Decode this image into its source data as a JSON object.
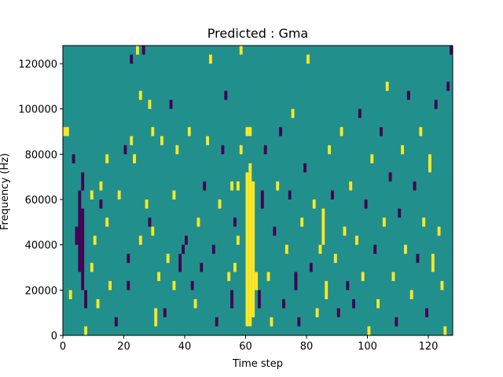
{
  "chart_data": {
    "type": "heatmap",
    "title": "Predicted : Gma",
    "xlabel": "Time step",
    "ylabel": "Frequency (Hz)",
    "xlim": [
      0,
      128
    ],
    "ylim": [
      0,
      128000
    ],
    "x_ticks": [
      0,
      20,
      40,
      60,
      80,
      100,
      120
    ],
    "y_ticks": [
      0,
      20000,
      40000,
      60000,
      80000,
      100000,
      120000
    ],
    "x_tick_labels": [
      "0",
      "20",
      "40",
      "60",
      "80",
      "100",
      "120"
    ],
    "y_tick_labels": [
      "0",
      "20000",
      "40000",
      "60000",
      "80000",
      "100000",
      "120000"
    ],
    "n_time_steps": 128,
    "n_freq_bins": 32,
    "bin_height_hz": 4000,
    "values_legend": {
      "-1": "#440154",
      "0": "#21908c",
      "1": "#fde725"
    },
    "background_value": 0,
    "cells": [
      {
        "t": 60,
        "f0": 4000,
        "f1": 72000,
        "v": 1
      },
      {
        "t": 61,
        "f0": 4000,
        "f1": 76000,
        "v": 1
      },
      {
        "t": 62,
        "f0": 8000,
        "f1": 68000,
        "v": 1
      },
      {
        "t": 63,
        "f0": 20000,
        "f1": 28000,
        "v": 1
      },
      {
        "t": 60,
        "f0": 88000,
        "f1": 92000,
        "v": 1
      },
      {
        "t": 61,
        "f0": 88000,
        "f1": 92000,
        "v": 1
      },
      {
        "t": 56,
        "f0": 28000,
        "f1": 32000,
        "v": 1
      },
      {
        "t": 57,
        "f0": 40000,
        "f1": 44000,
        "v": 1
      },
      {
        "t": 55,
        "f0": 64000,
        "f1": 68000,
        "v": 1
      },
      {
        "t": 58,
        "f0": 80000,
        "f1": 84000,
        "v": 1
      },
      {
        "t": 5,
        "f0": 28000,
        "f1": 64000,
        "v": -1
      },
      {
        "t": 6,
        "f0": 20000,
        "f1": 56000,
        "v": -1
      },
      {
        "t": 4,
        "f0": 40000,
        "f1": 48000,
        "v": -1
      },
      {
        "t": 6,
        "f0": 64000,
        "f1": 72000,
        "v": -1
      },
      {
        "t": 7,
        "f0": 12000,
        "f1": 20000,
        "v": -1
      },
      {
        "t": 3,
        "f0": 76000,
        "f1": 80000,
        "v": -1
      },
      {
        "t": 0,
        "f0": 88000,
        "f1": 92000,
        "v": 1
      },
      {
        "t": 1,
        "f0": 88000,
        "f1": 92000,
        "v": 1
      },
      {
        "t": 2,
        "f0": 16000,
        "f1": 20000,
        "v": 1
      },
      {
        "t": 7,
        "f0": 0,
        "f1": 4000,
        "v": 1
      },
      {
        "t": 9,
        "f0": 28000,
        "f1": 32000,
        "v": 1
      },
      {
        "t": 10,
        "f0": 40000,
        "f1": 44000,
        "v": 1
      },
      {
        "t": 9,
        "f0": 60000,
        "f1": 64000,
        "v": 1
      },
      {
        "t": 11,
        "f0": 12000,
        "f1": 16000,
        "v": 1
      },
      {
        "t": 12,
        "f0": 56000,
        "f1": 60000,
        "v": -1
      },
      {
        "t": 12,
        "f0": 64000,
        "f1": 68000,
        "v": 1
      },
      {
        "t": 14,
        "f0": 48000,
        "f1": 52000,
        "v": 1
      },
      {
        "t": 15,
        "f0": 20000,
        "f1": 24000,
        "v": 1
      },
      {
        "t": 14,
        "f0": 76000,
        "f1": 80000,
        "v": 1
      },
      {
        "t": 17,
        "f0": 4000,
        "f1": 8000,
        "v": -1
      },
      {
        "t": 18,
        "f0": 60000,
        "f1": 64000,
        "v": 1
      },
      {
        "t": 20,
        "f0": 80000,
        "f1": 84000,
        "v": -1
      },
      {
        "t": 21,
        "f0": 20000,
        "f1": 24000,
        "v": -1
      },
      {
        "t": 21,
        "f0": 32000,
        "f1": 36000,
        "v": -1
      },
      {
        "t": 22,
        "f0": 84000,
        "f1": 88000,
        "v": 1
      },
      {
        "t": 22,
        "f0": 120000,
        "f1": 124000,
        "v": -1
      },
      {
        "t": 24,
        "f0": 124000,
        "f1": 128000,
        "v": 1
      },
      {
        "t": 25,
        "f0": 104000,
        "f1": 108000,
        "v": 1
      },
      {
        "t": 23,
        "f0": 76000,
        "f1": 80000,
        "v": 1
      },
      {
        "t": 25,
        "f0": 40000,
        "f1": 44000,
        "v": 1
      },
      {
        "t": 26,
        "f0": 124000,
        "f1": 128000,
        "v": -1
      },
      {
        "t": 27,
        "f0": 56000,
        "f1": 60000,
        "v": 1
      },
      {
        "t": 28,
        "f0": 48000,
        "f1": 52000,
        "v": -1
      },
      {
        "t": 28,
        "f0": 100000,
        "f1": 104000,
        "v": 1
      },
      {
        "t": 29,
        "f0": 88000,
        "f1": 92000,
        "v": 1
      },
      {
        "t": 29,
        "f0": 44000,
        "f1": 48000,
        "v": 1
      },
      {
        "t": 30,
        "f0": 4000,
        "f1": 12000,
        "v": 1
      },
      {
        "t": 31,
        "f0": 24000,
        "f1": 28000,
        "v": 1
      },
      {
        "t": 32,
        "f0": 84000,
        "f1": 88000,
        "v": 1
      },
      {
        "t": 33,
        "f0": 8000,
        "f1": 12000,
        "v": -1
      },
      {
        "t": 34,
        "f0": 32000,
        "f1": 36000,
        "v": 1
      },
      {
        "t": 35,
        "f0": 100000,
        "f1": 104000,
        "v": -1
      },
      {
        "t": 36,
        "f0": 20000,
        "f1": 24000,
        "v": 1
      },
      {
        "t": 36,
        "f0": 60000,
        "f1": 64000,
        "v": 1
      },
      {
        "t": 37,
        "f0": 80000,
        "f1": 84000,
        "v": 1
      },
      {
        "t": 38,
        "f0": 28000,
        "f1": 36000,
        "v": -1
      },
      {
        "t": 39,
        "f0": 36000,
        "f1": 40000,
        "v": -1
      },
      {
        "t": 40,
        "f0": 40000,
        "f1": 44000,
        "v": -1
      },
      {
        "t": 41,
        "f0": 88000,
        "f1": 92000,
        "v": 1
      },
      {
        "t": 42,
        "f0": 20000,
        "f1": 24000,
        "v": -1
      },
      {
        "t": 43,
        "f0": 12000,
        "f1": 16000,
        "v": 1
      },
      {
        "t": 44,
        "f0": 48000,
        "f1": 52000,
        "v": 1
      },
      {
        "t": 45,
        "f0": 28000,
        "f1": 32000,
        "v": -1
      },
      {
        "t": 46,
        "f0": 64000,
        "f1": 68000,
        "v": -1
      },
      {
        "t": 47,
        "f0": 84000,
        "f1": 88000,
        "v": 1
      },
      {
        "t": 48,
        "f0": 120000,
        "f1": 124000,
        "v": 1
      },
      {
        "t": 49,
        "f0": 36000,
        "f1": 40000,
        "v": -1
      },
      {
        "t": 50,
        "f0": 4000,
        "f1": 8000,
        "v": -1
      },
      {
        "t": 51,
        "f0": 56000,
        "f1": 60000,
        "v": 1
      },
      {
        "t": 52,
        "f0": 80000,
        "f1": 84000,
        "v": -1
      },
      {
        "t": 53,
        "f0": 104000,
        "f1": 108000,
        "v": -1
      },
      {
        "t": 54,
        "f0": 24000,
        "f1": 28000,
        "v": 1
      },
      {
        "t": 55,
        "f0": 12000,
        "f1": 20000,
        "v": -1
      },
      {
        "t": 56,
        "f0": 48000,
        "f1": 52000,
        "v": -1
      },
      {
        "t": 57,
        "f0": 64000,
        "f1": 68000,
        "v": 1
      },
      {
        "t": 58,
        "f0": 124000,
        "f1": 128000,
        "v": 1
      },
      {
        "t": 64,
        "f0": 12000,
        "f1": 20000,
        "v": -1
      },
      {
        "t": 65,
        "f0": 56000,
        "f1": 64000,
        "v": -1
      },
      {
        "t": 66,
        "f0": 80000,
        "f1": 84000,
        "v": -1
      },
      {
        "t": 67,
        "f0": 24000,
        "f1": 28000,
        "v": 1
      },
      {
        "t": 68,
        "f0": 4000,
        "f1": 8000,
        "v": 1
      },
      {
        "t": 69,
        "f0": 44000,
        "f1": 48000,
        "v": -1
      },
      {
        "t": 70,
        "f0": 64000,
        "f1": 68000,
        "v": 1
      },
      {
        "t": 71,
        "f0": 88000,
        "f1": 92000,
        "v": -1
      },
      {
        "t": 72,
        "f0": 12000,
        "f1": 16000,
        "v": -1
      },
      {
        "t": 73,
        "f0": 36000,
        "f1": 40000,
        "v": 1
      },
      {
        "t": 74,
        "f0": 60000,
        "f1": 64000,
        "v": -1
      },
      {
        "t": 75,
        "f0": 96000,
        "f1": 100000,
        "v": 1
      },
      {
        "t": 76,
        "f0": 20000,
        "f1": 28000,
        "v": -1
      },
      {
        "t": 77,
        "f0": 4000,
        "f1": 8000,
        "v": -1
      },
      {
        "t": 78,
        "f0": 48000,
        "f1": 52000,
        "v": 1
      },
      {
        "t": 79,
        "f0": 72000,
        "f1": 76000,
        "v": -1
      },
      {
        "t": 80,
        "f0": 120000,
        "f1": 124000,
        "v": 1
      },
      {
        "t": 81,
        "f0": 28000,
        "f1": 32000,
        "v": -1
      },
      {
        "t": 82,
        "f0": 56000,
        "f1": 60000,
        "v": 1
      },
      {
        "t": 83,
        "f0": 8000,
        "f1": 12000,
        "v": 1
      },
      {
        "t": 84,
        "f0": 36000,
        "f1": 40000,
        "v": 1
      },
      {
        "t": 85,
        "f0": 40000,
        "f1": 56000,
        "v": 1
      },
      {
        "t": 86,
        "f0": 16000,
        "f1": 24000,
        "v": 1
      },
      {
        "t": 87,
        "f0": 80000,
        "f1": 84000,
        "v": 1
      },
      {
        "t": 88,
        "f0": 60000,
        "f1": 64000,
        "v": -1
      },
      {
        "t": 89,
        "f0": 32000,
        "f1": 36000,
        "v": 1
      },
      {
        "t": 90,
        "f0": 8000,
        "f1": 12000,
        "v": -1
      },
      {
        "t": 91,
        "f0": 88000,
        "f1": 92000,
        "v": 1
      },
      {
        "t": 92,
        "f0": 44000,
        "f1": 48000,
        "v": 1
      },
      {
        "t": 93,
        "f0": 20000,
        "f1": 24000,
        "v": -1
      },
      {
        "t": 94,
        "f0": 64000,
        "f1": 68000,
        "v": 1
      },
      {
        "t": 95,
        "f0": 12000,
        "f1": 16000,
        "v": -1
      },
      {
        "t": 96,
        "f0": 40000,
        "f1": 44000,
        "v": 1
      },
      {
        "t": 97,
        "f0": 96000,
        "f1": 100000,
        "v": -1
      },
      {
        "t": 98,
        "f0": 24000,
        "f1": 28000,
        "v": 1
      },
      {
        "t": 99,
        "f0": 56000,
        "f1": 60000,
        "v": -1
      },
      {
        "t": 100,
        "f0": 0,
        "f1": 4000,
        "v": 1
      },
      {
        "t": 101,
        "f0": 76000,
        "f1": 80000,
        "v": 1
      },
      {
        "t": 102,
        "f0": 36000,
        "f1": 40000,
        "v": -1
      },
      {
        "t": 103,
        "f0": 12000,
        "f1": 16000,
        "v": 1
      },
      {
        "t": 104,
        "f0": 88000,
        "f1": 92000,
        "v": -1
      },
      {
        "t": 105,
        "f0": 48000,
        "f1": 52000,
        "v": 1
      },
      {
        "t": 106,
        "f0": 108000,
        "f1": 112000,
        "v": 1
      },
      {
        "t": 107,
        "f0": 68000,
        "f1": 72000,
        "v": -1
      },
      {
        "t": 108,
        "f0": 24000,
        "f1": 28000,
        "v": 1
      },
      {
        "t": 109,
        "f0": 4000,
        "f1": 8000,
        "v": -1
      },
      {
        "t": 110,
        "f0": 52000,
        "f1": 56000,
        "v": -1
      },
      {
        "t": 111,
        "f0": 80000,
        "f1": 84000,
        "v": 1
      },
      {
        "t": 112,
        "f0": 36000,
        "f1": 40000,
        "v": 1
      },
      {
        "t": 113,
        "f0": 104000,
        "f1": 108000,
        "v": -1
      },
      {
        "t": 114,
        "f0": 16000,
        "f1": 20000,
        "v": 1
      },
      {
        "t": 115,
        "f0": 64000,
        "f1": 68000,
        "v": -1
      },
      {
        "t": 116,
        "f0": 32000,
        "f1": 36000,
        "v": -1
      },
      {
        "t": 117,
        "f0": 88000,
        "f1": 92000,
        "v": 1
      },
      {
        "t": 118,
        "f0": 48000,
        "f1": 52000,
        "v": 1
      },
      {
        "t": 119,
        "f0": 8000,
        "f1": 12000,
        "v": -1
      },
      {
        "t": 120,
        "f0": 72000,
        "f1": 80000,
        "v": 1
      },
      {
        "t": 121,
        "f0": 28000,
        "f1": 36000,
        "v": 1
      },
      {
        "t": 122,
        "f0": 100000,
        "f1": 104000,
        "v": -1
      },
      {
        "t": 123,
        "f0": 44000,
        "f1": 48000,
        "v": 1
      },
      {
        "t": 124,
        "f0": 20000,
        "f1": 24000,
        "v": 1
      },
      {
        "t": 125,
        "f0": 0,
        "f1": 4000,
        "v": 1
      },
      {
        "t": 126,
        "f0": 108000,
        "f1": 112000,
        "v": -1
      },
      {
        "t": 127,
        "f0": 124000,
        "f1": 128000,
        "v": -1
      }
    ]
  }
}
